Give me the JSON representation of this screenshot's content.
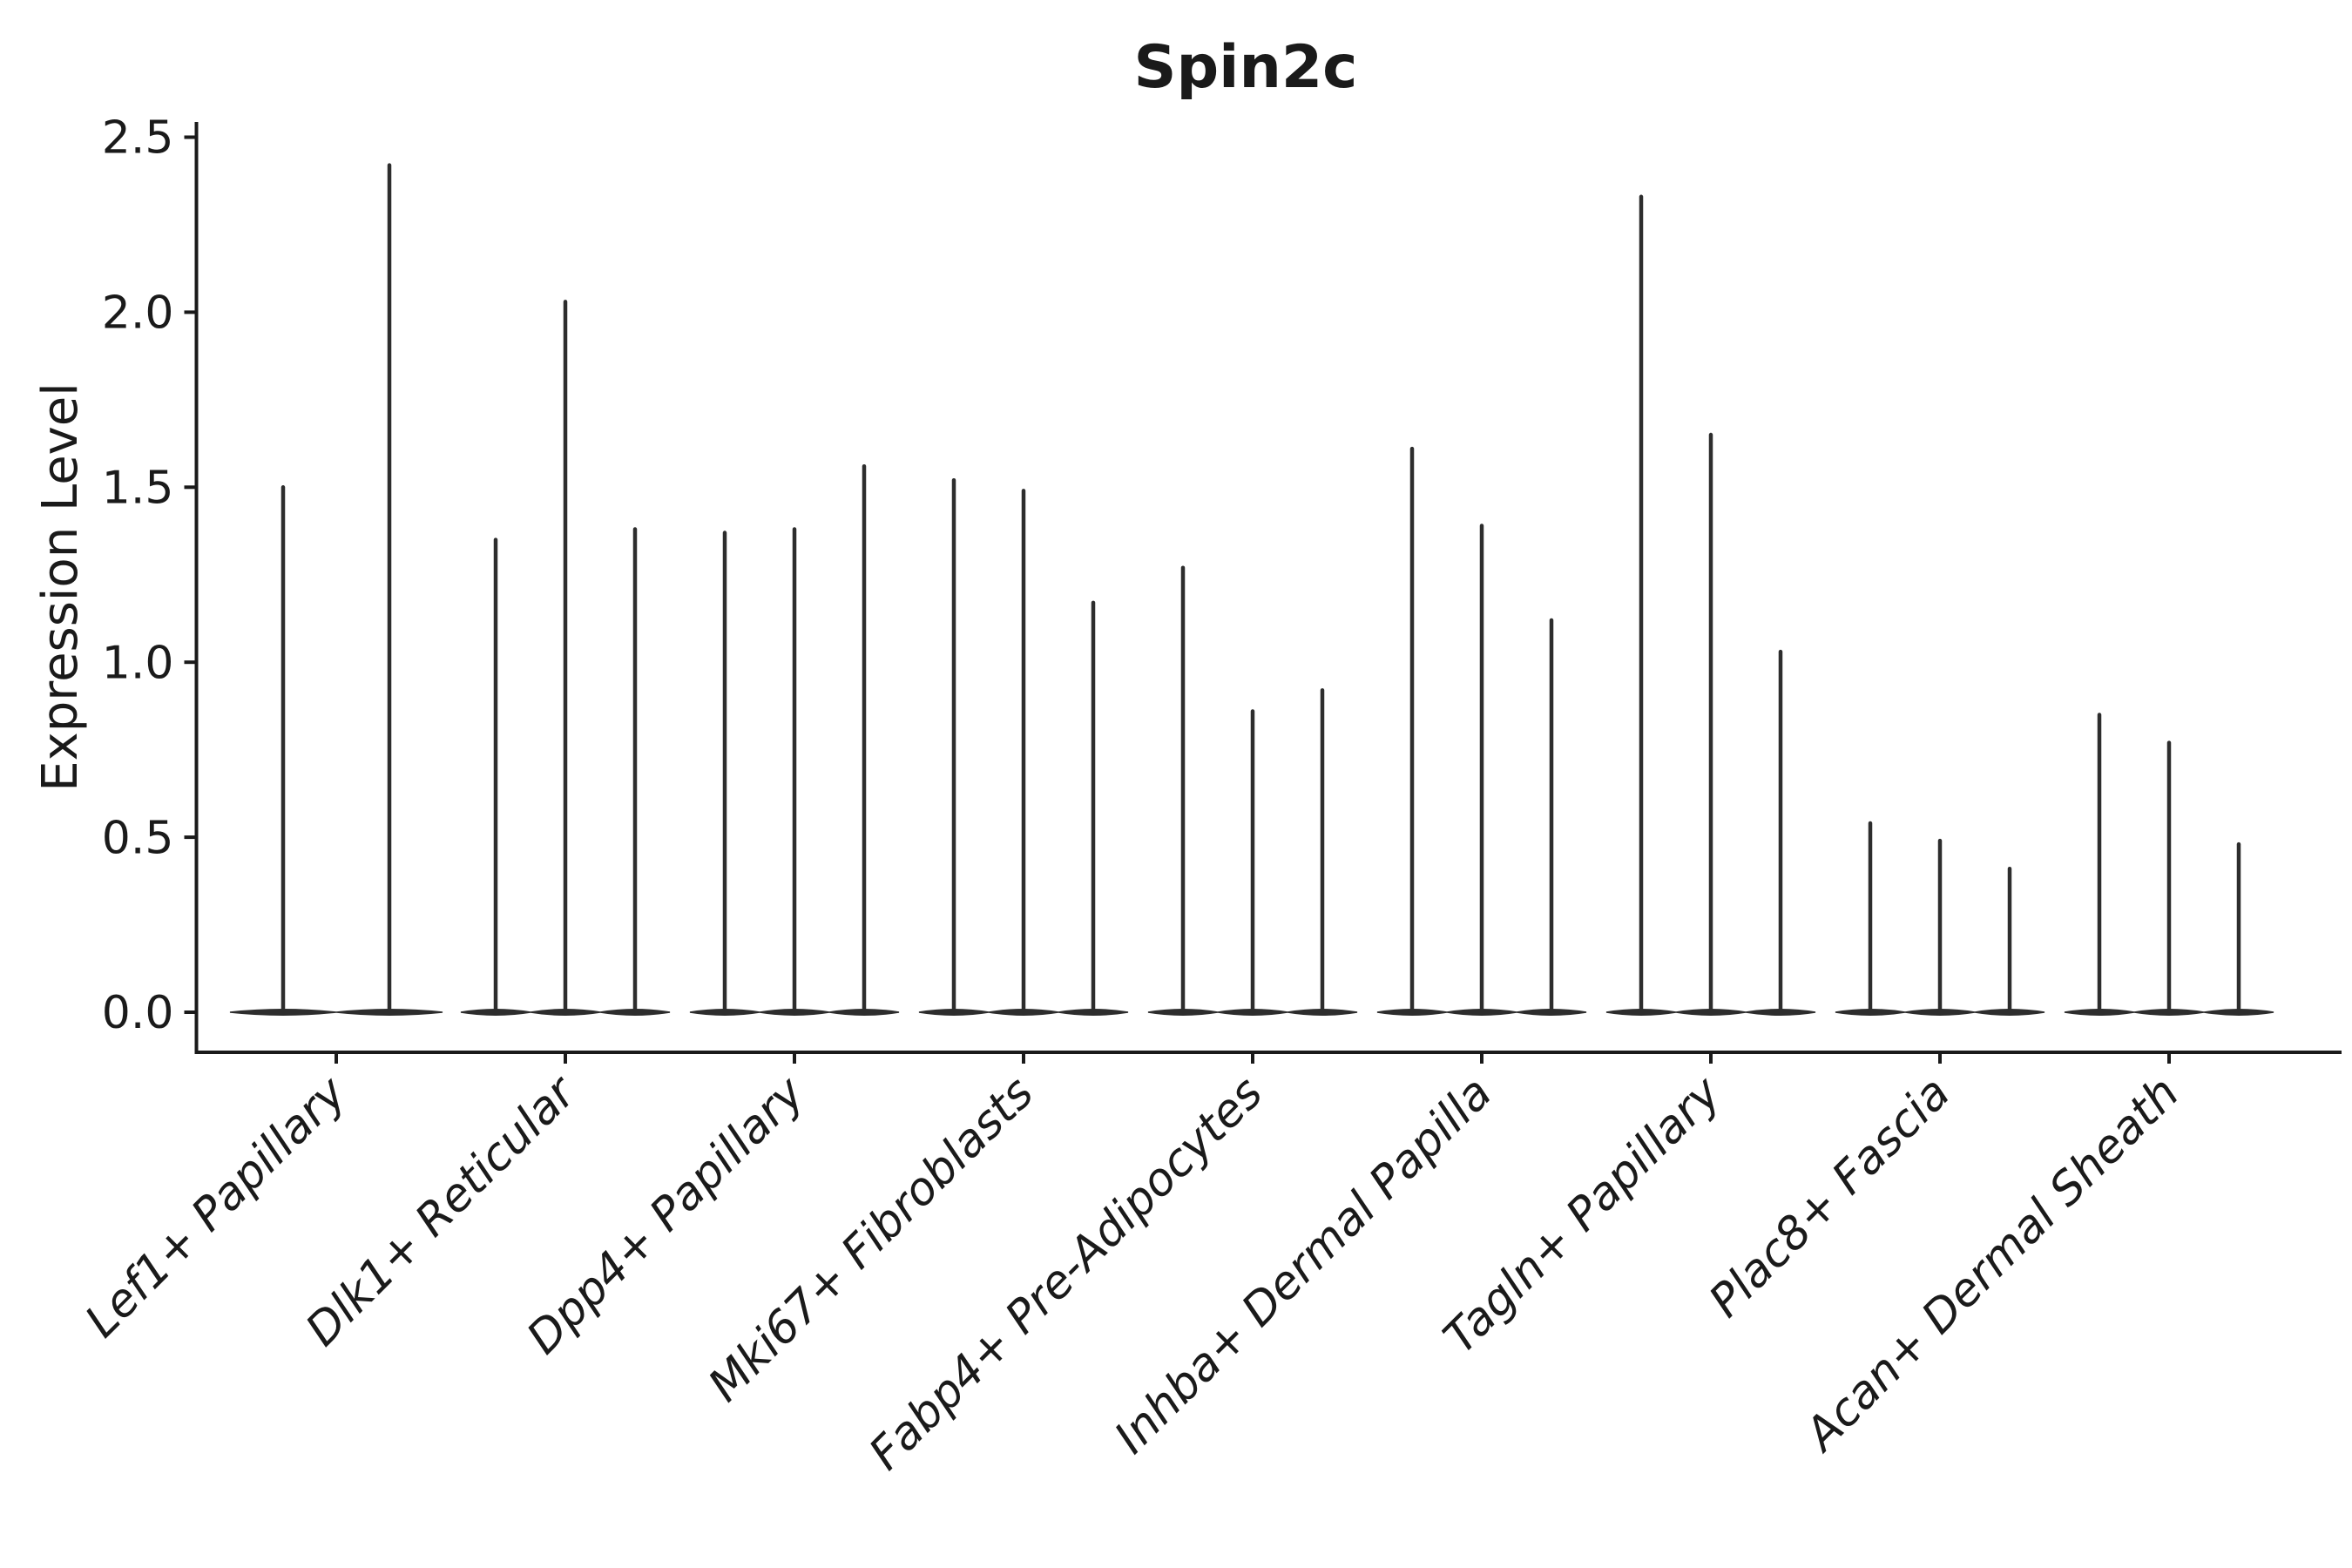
{
  "chart_data": {
    "type": "violin",
    "title": "Spin2c",
    "xlabel": "",
    "ylabel": "Expression Level",
    "ylim": [
      -0.11,
      2.54
    ],
    "grid": false,
    "legend": "none",
    "yticks": {
      "values": [
        0.0,
        0.5,
        1.0,
        1.5,
        2.0,
        2.5
      ],
      "labels": [
        "0.0",
        "0.5",
        "1.0",
        "1.5",
        "2.0",
        "2.5"
      ]
    },
    "note": "Each category shows narrow split violins; nearly all density sits at 0 with a thin spike up to the max expression value per violin.",
    "categories": [
      {
        "label": "Lef1+ Papillary",
        "spike_maxima": [
          1.5,
          2.42
        ]
      },
      {
        "label": "Dlk1+ Reticular",
        "spike_maxima": [
          1.35,
          2.03,
          1.38
        ]
      },
      {
        "label": "Dpp4+ Papillary",
        "spike_maxima": [
          1.37,
          1.38,
          1.56
        ]
      },
      {
        "label": "Mki67+ Fibroblasts",
        "spike_maxima": [
          1.52,
          1.49,
          1.17
        ]
      },
      {
        "label": "Fabp4+ Pre-Adipocytes",
        "spike_maxima": [
          1.27,
          0.86,
          0.92
        ]
      },
      {
        "label": "Inhba+ Dermal Papilla",
        "spike_maxima": [
          1.61,
          1.39,
          1.12
        ]
      },
      {
        "label": "Tagln+ Papillary",
        "spike_maxima": [
          2.33,
          1.65,
          1.03
        ]
      },
      {
        "label": "Plac8+ Fascia",
        "spike_maxima": [
          0.54,
          0.49,
          0.41
        ]
      },
      {
        "label": "Acan+ Dermal Sheath",
        "spike_maxima": [
          0.85,
          0.77,
          0.48
        ]
      }
    ],
    "colors": {
      "violin_ink": "#2d2d2d",
      "axis_ink": "#1a1a1a",
      "text_ink": "#1a1a1a",
      "background": "#ffffff"
    }
  }
}
